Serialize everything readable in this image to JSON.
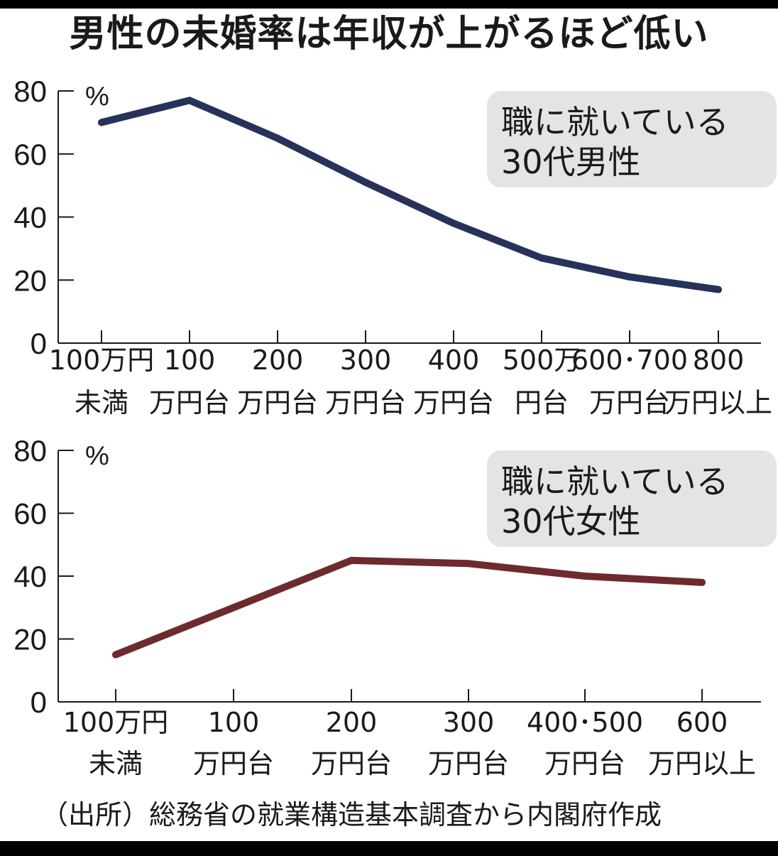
{
  "title": "男性の未婚率は年収が上がるほど低い",
  "source": "（出所）総務省の就業構造基本調査から内閣府作成",
  "colors": {
    "men_line": "#27325a",
    "women_line": "#6e2a2c",
    "annotation_bg": "#e3e5e5",
    "axis": "#1a1a1a"
  },
  "chart_data": [
    {
      "type": "line",
      "title": "",
      "annotation": [
        "職に就いている",
        "30代男性"
      ],
      "unit": "%",
      "ylim": [
        0,
        80
      ],
      "yticks": [
        "0",
        "20",
        "40",
        "60",
        "80"
      ],
      "categories": [
        [
          "100万円",
          "未満"
        ],
        [
          "100",
          "万円台"
        ],
        [
          "200",
          "万円台"
        ],
        [
          "300",
          "万円台"
        ],
        [
          "400",
          "万円台"
        ],
        [
          "500万",
          "円台"
        ],
        [
          "600･700",
          "万円台"
        ],
        [
          "800",
          "万円以上"
        ]
      ],
      "series": [
        {
          "values": [
            70,
            77,
            65,
            51,
            38,
            27,
            21,
            17
          ]
        }
      ],
      "grid": false
    },
    {
      "type": "line",
      "title": "",
      "annotation": [
        "職に就いている",
        "30代女性"
      ],
      "unit": "%",
      "ylim": [
        0,
        80
      ],
      "yticks": [
        "0",
        "20",
        "40",
        "60",
        "80"
      ],
      "categories": [
        [
          "100万円",
          "未満"
        ],
        [
          "100",
          "万円台"
        ],
        [
          "200",
          "万円台"
        ],
        [
          "300",
          "万円台"
        ],
        [
          "400･500",
          "万円台"
        ],
        [
          "600",
          "万円以上"
        ]
      ],
      "series": [
        {
          "values": [
            15,
            30,
            45,
            44,
            40,
            38
          ]
        }
      ],
      "grid": false
    }
  ]
}
